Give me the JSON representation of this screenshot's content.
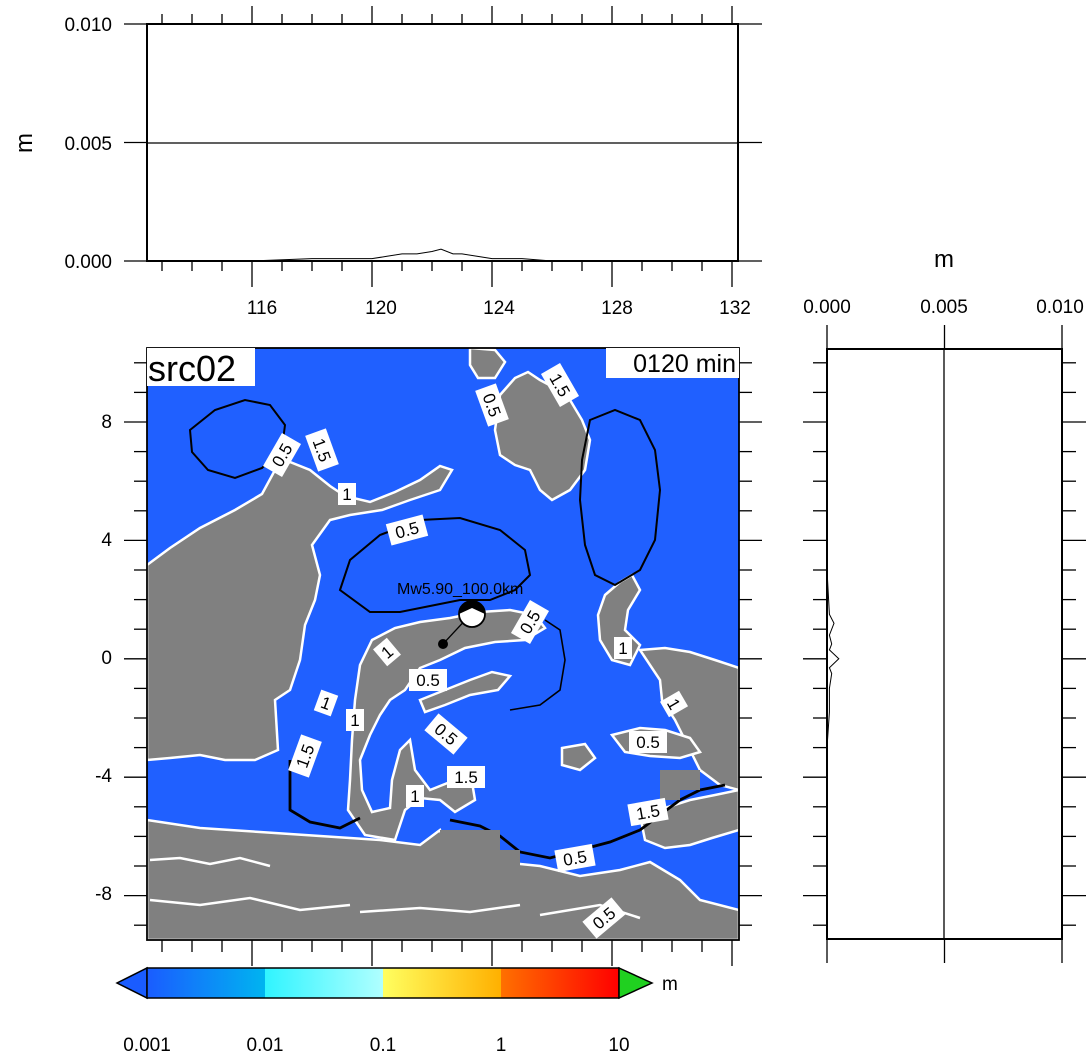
{
  "map": {
    "run_label": "src02",
    "time_label": "0120 min",
    "epicenter_label": "Mw5.90_100.0km",
    "contour_labels": [
      "0.5",
      "1.5",
      "1",
      "0.5",
      "0.5",
      "1.5",
      "0.5",
      "1",
      "1",
      "0.5",
      "1",
      "1",
      "0.5",
      "1.5",
      "1",
      "0.5",
      "1.5",
      "1",
      "1.5",
      "0.5",
      "0.5",
      "0.5",
      "0.5",
      "1.5",
      "1"
    ],
    "x_ticks": [
      "116",
      "120",
      "124",
      "128",
      "132"
    ],
    "y_ticks": [
      "8",
      "4",
      "0",
      "-4",
      "-8"
    ],
    "colors": {
      "sea": "#2060ff",
      "land": "#808080",
      "contour_white": "#ffffff",
      "contour_black": "#000000"
    }
  },
  "top_profile": {
    "ylabel": "m",
    "y_ticks": [
      "0.010",
      "0.005",
      "0.000"
    ],
    "chart_data": {
      "type": "line",
      "x": [
        113,
        116,
        118,
        119,
        120,
        120.5,
        121,
        121.5,
        122,
        122.3,
        122.7,
        123,
        123.5,
        124,
        125,
        126,
        128,
        130,
        132
      ],
      "values": [
        0,
        0,
        0.0001,
        0.0001,
        0.0001,
        0.0002,
        0.0003,
        0.0003,
        0.0004,
        0.0005,
        0.0003,
        0.0003,
        0.0002,
        0.0001,
        0.0001,
        0,
        0,
        0,
        0
      ],
      "xlim": [
        112.5,
        132.2
      ],
      "ylim": [
        0,
        0.01
      ]
    }
  },
  "side_profile": {
    "xlabel": "m",
    "x_ticks": [
      "0.000",
      "0.005",
      "0.010"
    ],
    "chart_data": {
      "type": "line",
      "y": [
        10.5,
        6,
        3,
        1.5,
        1.2,
        0.8,
        0.5,
        0.3,
        0,
        -0.3,
        -0.5,
        -1,
        -1.8,
        -3,
        -6,
        -9.5
      ],
      "values": [
        0,
        0,
        0,
        0.0001,
        0.0003,
        0.0001,
        0.0002,
        0.0001,
        0.0005,
        0.0001,
        0.0002,
        0.0001,
        0.0001,
        0,
        0,
        0
      ],
      "xlim": [
        0,
        0.01
      ],
      "ylim": [
        -9.5,
        10.5
      ]
    }
  },
  "colorbar": {
    "unit": "m",
    "tick_labels": [
      "0.001",
      "0.01",
      "0.1",
      "1",
      "10"
    ],
    "colors": [
      "#1a5cff",
      "#00b0f0",
      "#30f0ff",
      "#a8ffff",
      "#ffff50",
      "#ffc000",
      "#ff6000",
      "#ff0000"
    ],
    "over_color": "#20d020",
    "under_color": "#1a5cff"
  }
}
